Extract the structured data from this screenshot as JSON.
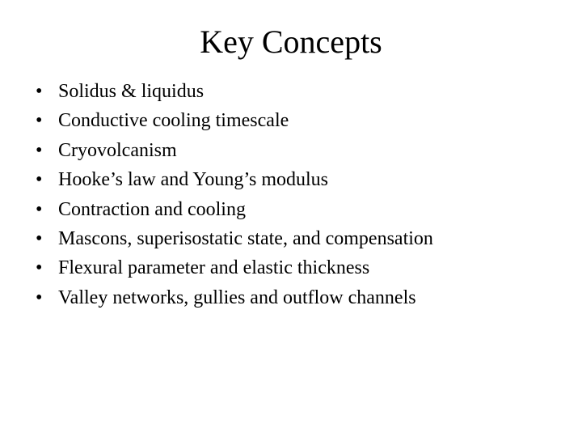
{
  "background_color": "#ffffff",
  "text_color": "#000000",
  "font_family": "Times New Roman",
  "title": {
    "text": "Key Concepts",
    "fontsize": 40,
    "align": "center"
  },
  "bullets": {
    "fontsize": 24,
    "marker": "•",
    "items": [
      "Solidus & liquidus",
      "Conductive cooling timescale",
      "Cryovolcanism",
      "Hooke’s law and Young’s modulus",
      "Contraction and cooling",
      "Mascons, superisostatic state, and compensation",
      "Flexural parameter and elastic thickness",
      "Valley networks, gullies and outflow channels"
    ]
  }
}
